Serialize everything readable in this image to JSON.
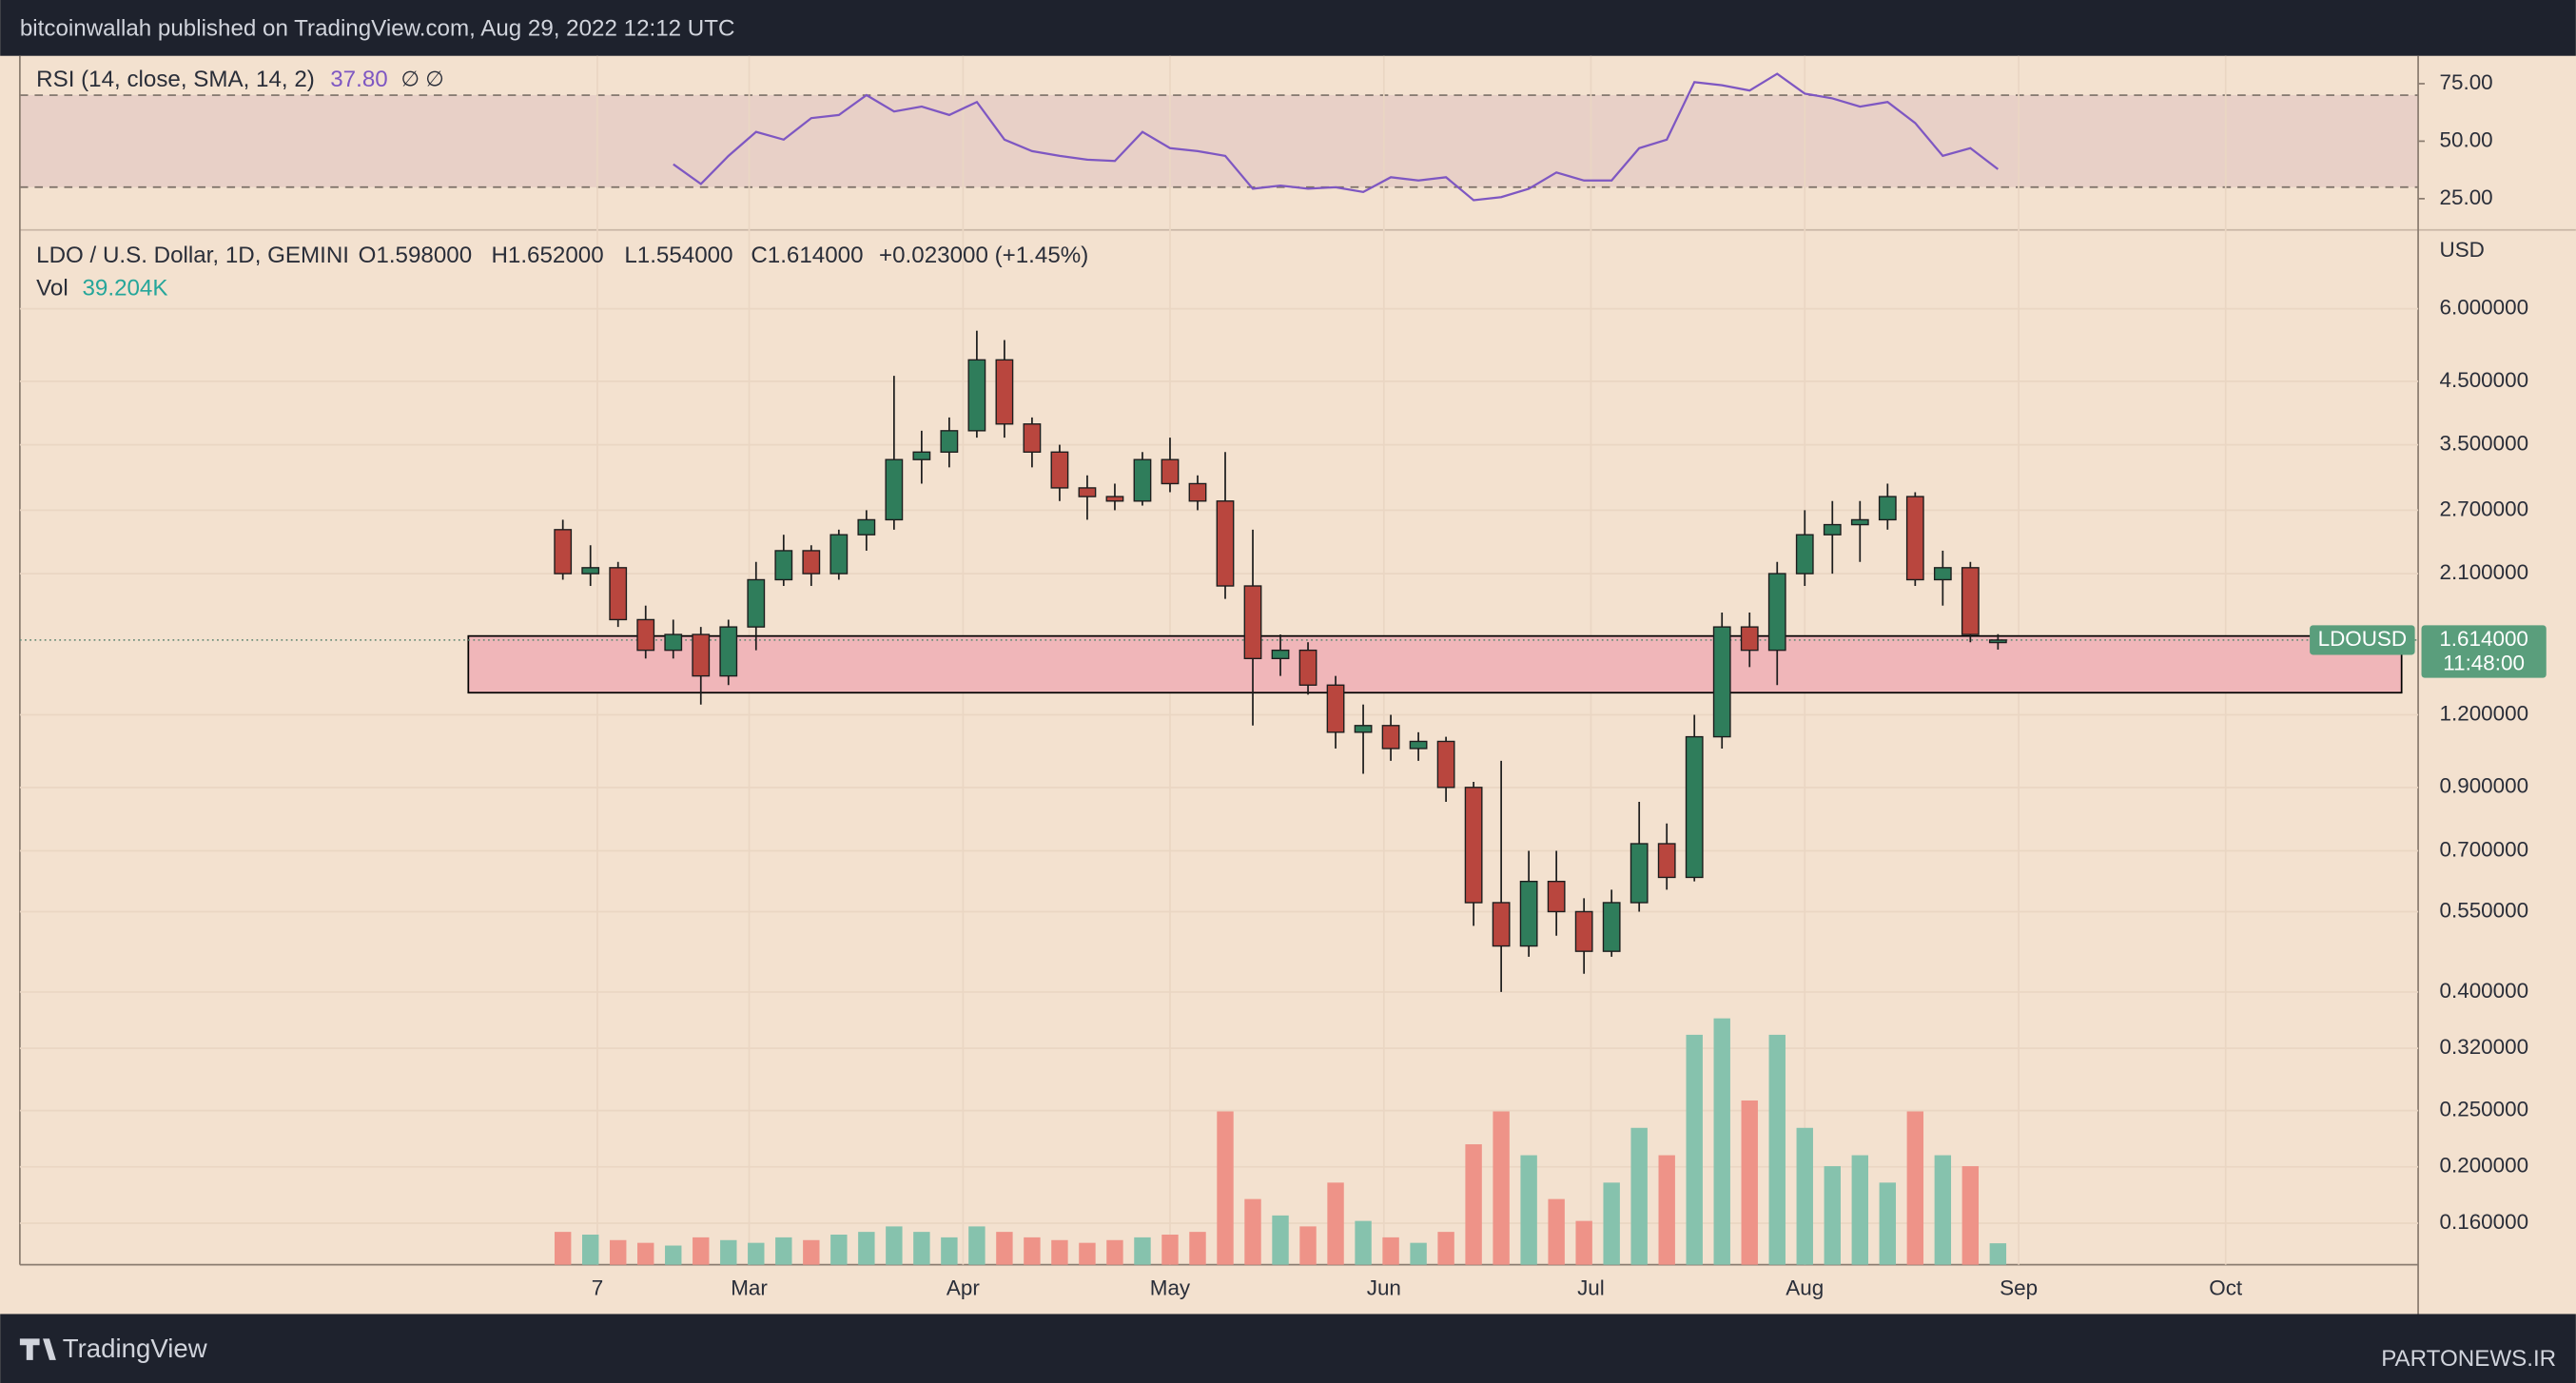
{
  "header": "bitcoinwallah published on TradingView.com, Aug 29, 2022 12:12 UTC",
  "chart_data": {
    "type": "candlestick",
    "title": "LDO / U.S. Dollar, 1D, GEMINI",
    "ohlc_text": [
      "O1.598000",
      "H1.652000",
      "L1.554000",
      "C1.614000",
      "+0.023000 (+1.45%)"
    ],
    "y_axis_label": "USD",
    "log_scale": true,
    "grid": true,
    "x": [
      33,
      37,
      41,
      45,
      49,
      53,
      57,
      61,
      65,
      69,
      73,
      77,
      81,
      85,
      89,
      93,
      97,
      101,
      105,
      109,
      113,
      117,
      121,
      125,
      129,
      133,
      137,
      141,
      145,
      149,
      153,
      157,
      161,
      165,
      169,
      173,
      177,
      181,
      185,
      189,
      193,
      197,
      201,
      205,
      209,
      213,
      217,
      221,
      225,
      229,
      233,
      237,
      241
    ],
    "xlim": [
      -45.7,
      301.9
    ],
    "xticks": [
      {
        "value": 38,
        "label": "7"
      },
      {
        "value": 60,
        "label": "Mar"
      },
      {
        "value": 91,
        "label": "Apr"
      },
      {
        "value": 121,
        "label": "May"
      },
      {
        "value": 152,
        "label": "Jun"
      },
      {
        "value": 182,
        "label": "Jul"
      },
      {
        "value": 213,
        "label": "Aug"
      },
      {
        "value": 244,
        "label": "Sep"
      },
      {
        "value": 274,
        "label": "Oct"
      }
    ],
    "ylim": [
      0.1357,
      8.2
    ],
    "yticks": [
      {
        "value": 6,
        "label": "6.000000"
      },
      {
        "value": 4.5,
        "label": "4.500000"
      },
      {
        "value": 3.5,
        "label": "3.500000"
      },
      {
        "value": 2.7,
        "label": "2.700000"
      },
      {
        "value": 2.1,
        "label": "2.100000"
      },
      {
        "value": 1.2,
        "label": "1.200000"
      },
      {
        "value": 0.9,
        "label": "0.900000"
      },
      {
        "value": 0.7,
        "label": "0.700000"
      },
      {
        "value": 0.55,
        "label": "0.550000"
      },
      {
        "value": 0.4,
        "label": "0.400000"
      },
      {
        "value": 0.32,
        "label": "0.320000"
      },
      {
        "value": 0.25,
        "label": "0.250000"
      },
      {
        "value": 0.2,
        "label": "0.200000"
      },
      {
        "value": 0.16,
        "label": "0.160000"
      }
    ],
    "series": [
      {
        "name": "LDOUSD",
        "up_color": "#2f7d5b",
        "down_color": "#b9463e",
        "open": [
          2.5,
          2.1,
          2.15,
          1.75,
          1.55,
          1.65,
          1.4,
          1.7,
          2.05,
          2.3,
          2.1,
          2.45,
          2.6,
          3.3,
          3.4,
          3.7,
          4.9,
          3.8,
          3.4,
          2.95,
          2.85,
          2.8,
          3.3,
          3.0,
          2.8,
          2.0,
          1.5,
          1.55,
          1.35,
          1.12,
          1.15,
          1.05,
          1.08,
          0.9,
          0.57,
          0.48,
          0.62,
          0.55,
          0.47,
          0.57,
          0.72,
          0.63,
          1.1,
          1.7,
          1.55,
          2.1,
          2.45,
          2.55,
          2.6,
          2.85,
          2.05,
          2.15,
          1.598
        ],
        "high": [
          2.6,
          2.35,
          2.2,
          1.85,
          1.75,
          1.7,
          1.75,
          2.2,
          2.45,
          2.35,
          2.5,
          2.7,
          4.6,
          3.7,
          3.9,
          5.5,
          5.3,
          3.9,
          3.5,
          3.1,
          3.0,
          3.4,
          3.6,
          3.1,
          3.4,
          2.5,
          1.65,
          1.6,
          1.4,
          1.25,
          1.2,
          1.12,
          1.1,
          0.92,
          1.0,
          0.7,
          0.7,
          0.58,
          0.6,
          0.85,
          0.78,
          1.2,
          1.8,
          1.8,
          2.2,
          2.7,
          2.8,
          2.8,
          3.0,
          2.9,
          2.3,
          2.2,
          1.652
        ],
        "low": [
          2.05,
          2.0,
          1.7,
          1.5,
          1.5,
          1.25,
          1.35,
          1.55,
          2.0,
          2.0,
          2.05,
          2.3,
          2.5,
          3.0,
          3.2,
          3.6,
          3.6,
          3.2,
          2.8,
          2.6,
          2.7,
          2.75,
          2.9,
          2.7,
          1.9,
          1.15,
          1.4,
          1.3,
          1.05,
          0.95,
          1.0,
          1.0,
          0.85,
          0.52,
          0.4,
          0.46,
          0.5,
          0.43,
          0.46,
          0.55,
          0.6,
          0.62,
          1.05,
          1.45,
          1.35,
          2.0,
          2.1,
          2.2,
          2.5,
          2.0,
          1.85,
          1.6,
          1.554
        ],
        "close": [
          2.1,
          2.15,
          1.75,
          1.55,
          1.65,
          1.4,
          1.7,
          2.05,
          2.3,
          2.1,
          2.45,
          2.6,
          3.3,
          3.4,
          3.7,
          4.9,
          3.8,
          3.4,
          2.95,
          2.85,
          2.8,
          3.3,
          3.0,
          2.8,
          2.0,
          1.5,
          1.55,
          1.35,
          1.12,
          1.15,
          1.05,
          1.08,
          0.9,
          0.57,
          0.48,
          0.62,
          0.55,
          0.47,
          0.57,
          0.72,
          0.63,
          1.1,
          1.7,
          1.55,
          2.1,
          2.45,
          2.55,
          2.6,
          2.85,
          2.05,
          2.15,
          1.65,
          1.614
        ]
      }
    ],
    "volume": {
      "label": "Vol",
      "last_label": "39.204K",
      "up_color": "#86c2ad",
      "down_color": "#ee9388",
      "ylim": [
        0,
        1890
      ],
      "values": [
        60,
        55,
        45,
        40,
        35,
        50,
        45,
        40,
        50,
        45,
        55,
        60,
        70,
        60,
        50,
        70,
        60,
        50,
        45,
        40,
        45,
        50,
        55,
        60,
        280,
        120,
        90,
        70,
        150,
        80,
        50,
        40,
        60,
        220,
        280,
        200,
        120,
        80,
        150,
        250,
        200,
        420,
        450,
        300,
        420,
        250,
        180,
        200,
        150,
        280,
        200,
        180,
        39.204
      ]
    },
    "last_price": {
      "name": "LDOUSD",
      "value": 1.614,
      "label": "1.614000",
      "countdown": "11:48:00",
      "color": "#5a9e7c"
    },
    "zone": {
      "xlim": [
        19.3,
        299.5
      ],
      "ylim": [
        1.31,
        1.64
      ],
      "color": "#f0b6b9"
    },
    "rsi": {
      "title": "RSI (14, close, SMA, 14, 2)",
      "value_label": "37.80",
      "icons": "∅ ∅",
      "color": "#7e57c2",
      "ylim": [
        11.4,
        87.1
      ],
      "band": [
        30,
        70
      ],
      "yticks": [
        {
          "value": 75,
          "label": "75.00"
        },
        {
          "value": 50,
          "label": "50.00"
        },
        {
          "value": 25,
          "label": "25.00"
        }
      ],
      "values": [
        null,
        null,
        null,
        null,
        40,
        31.4,
        43.6,
        54,
        50.7,
        60,
        61.4,
        70,
        62.9,
        65,
        61.4,
        67,
        50.7,
        45.7,
        43.6,
        42,
        41.4,
        54,
        47,
        45.7,
        43.6,
        29.3,
        30.7,
        29.3,
        30,
        27.9,
        34.3,
        32.9,
        34.3,
        24.3,
        25.7,
        29.3,
        36.4,
        32.9,
        32.9,
        47,
        50.7,
        75.7,
        74.3,
        72,
        79.3,
        70.7,
        68.6,
        65,
        67,
        57.9,
        43.6,
        47,
        37.8
      ]
    }
  },
  "footer": {
    "brand": "TradingView",
    "watermark": "PARTONEWS.IR"
  }
}
